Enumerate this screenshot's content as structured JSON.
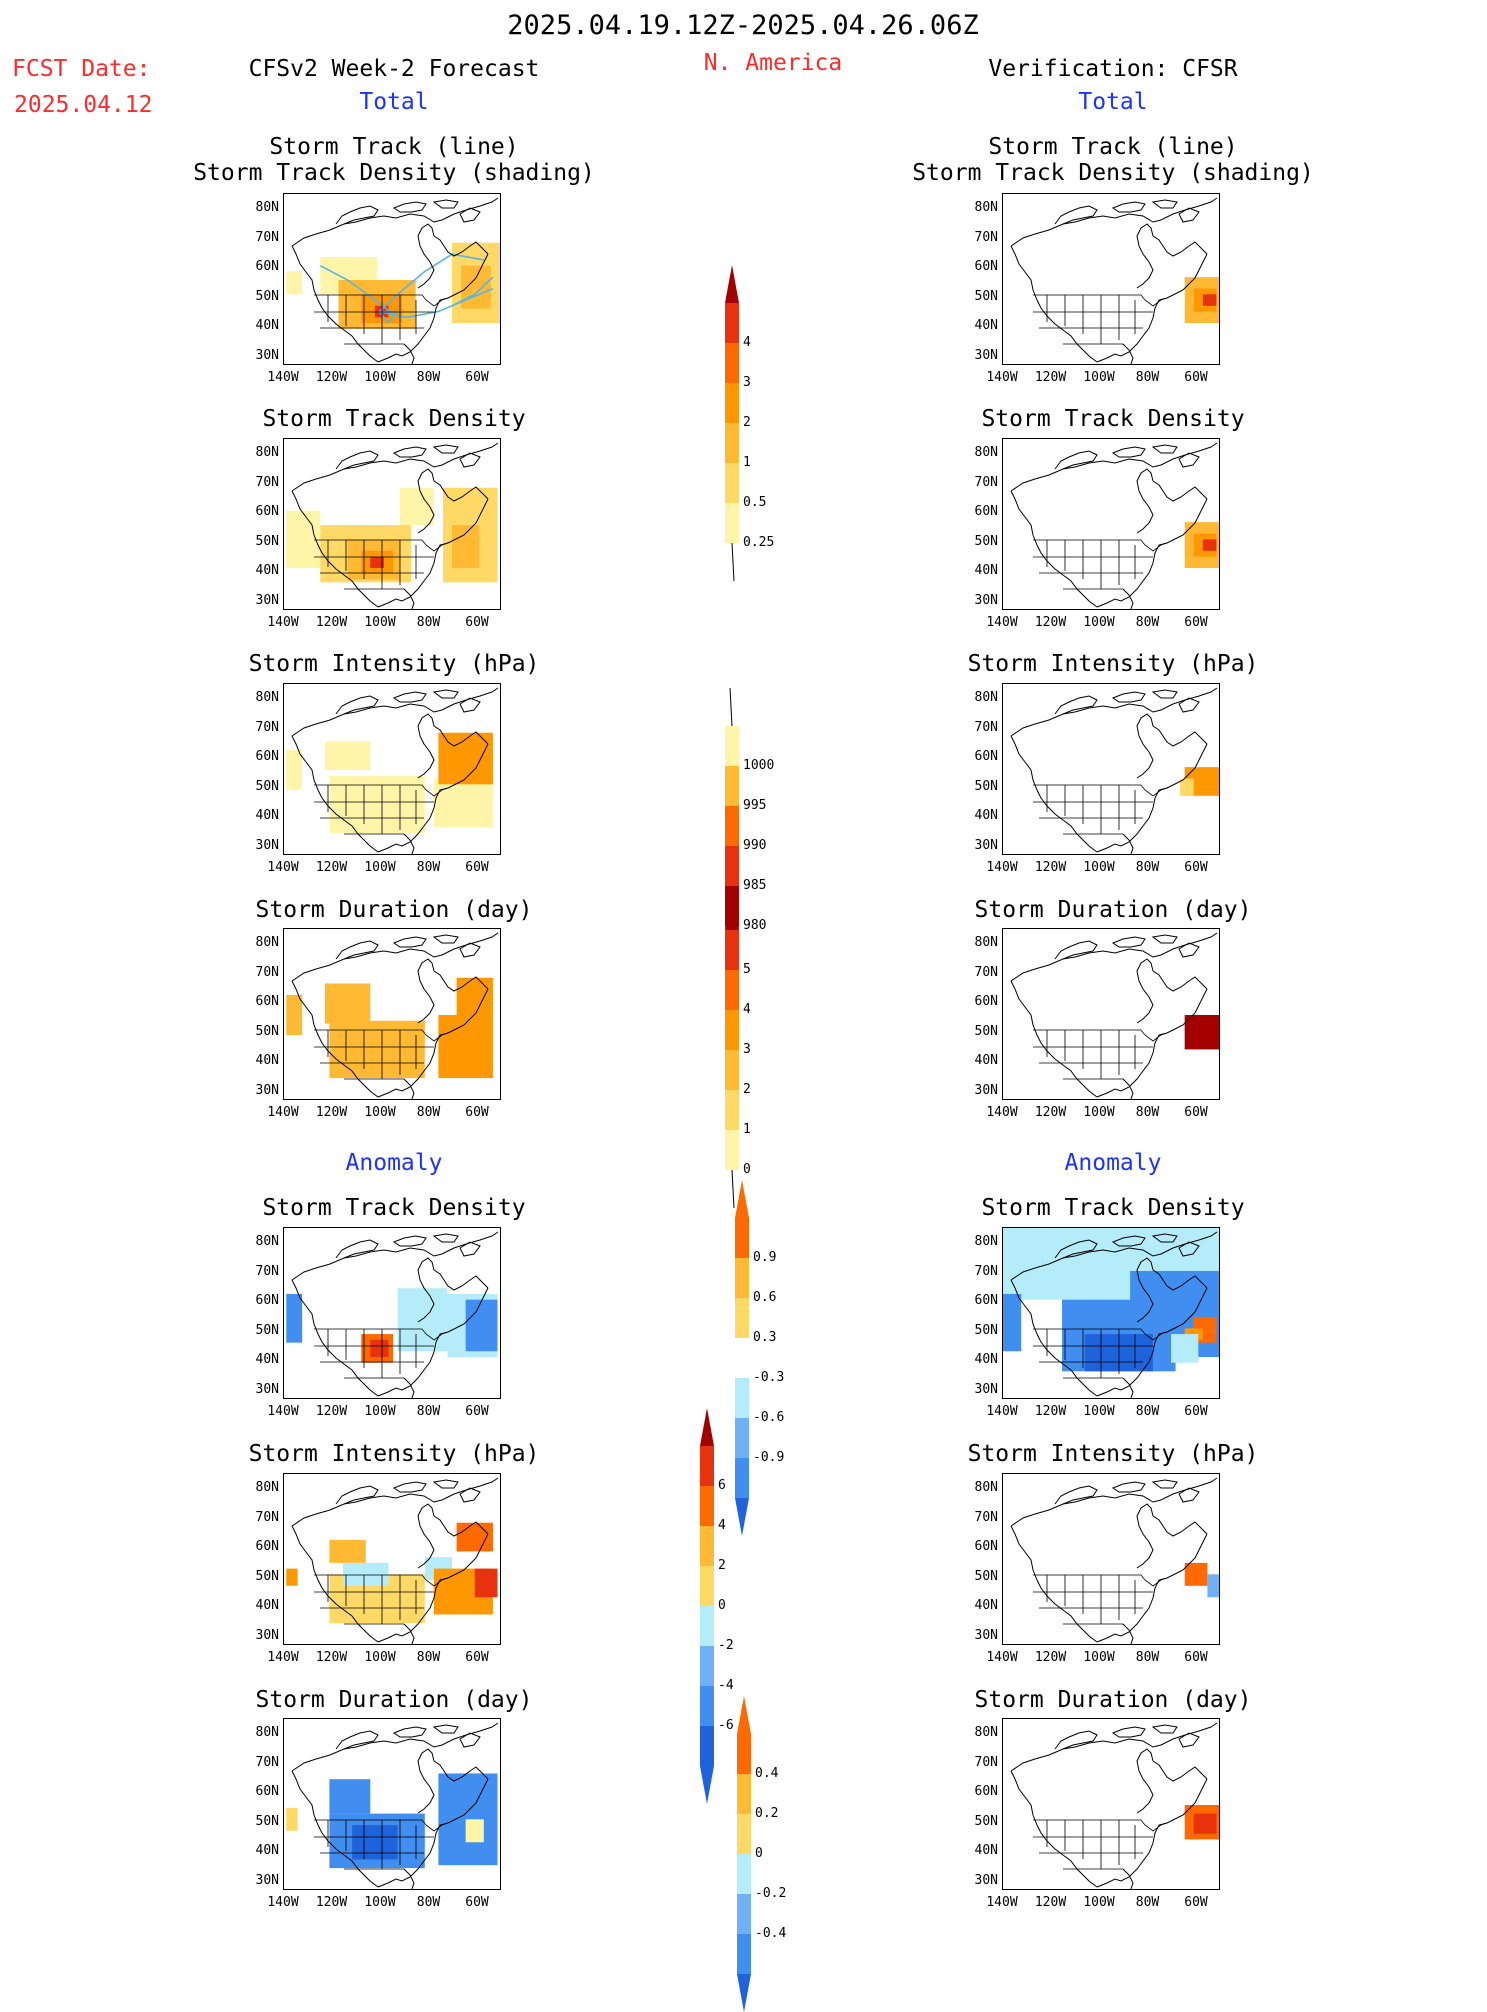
{
  "header": {
    "date_range": "2025.04.19.12Z-2025.04.26.06Z",
    "fcst_label": "FCST Date:",
    "fcst_date": "2025.04.12",
    "left_title": "CFSv2 Week-2 Forecast",
    "region": "N. America",
    "right_title": "Verification: CFSR",
    "total_label": "Total",
    "anomaly_label": "Anomaly"
  },
  "axes": {
    "y_ticks": [
      "80N",
      "70N",
      "60N",
      "50N",
      "40N",
      "30N"
    ],
    "x_ticks": [
      "140W",
      "120W",
      "100W",
      "80W",
      "60W"
    ]
  },
  "panel_titles": {
    "track_line1": "Storm Track (line)",
    "track_line2": "Storm Track Density (shading)",
    "density": "Storm Track Density",
    "intensity": "Storm Intensity (hPa)",
    "duration": "Storm Duration (day)"
  },
  "colors": {
    "yellow_light": "#fff5a8",
    "yellow": "#ffd966",
    "orange_light": "#ffb932",
    "orange": "#ff9700",
    "orange_red": "#ff6a00",
    "red": "#e8320e",
    "dark_red": "#a50000",
    "blue_light": "#b4ecfa",
    "blue_mid": "#6fb1f5",
    "blue": "#3f8ef0",
    "blue_dark": "#1f63dc",
    "track_line": "#56b4e9"
  },
  "colorbars": [
    {
      "name": "density-colorbar",
      "labels": [
        "4",
        "3",
        "2",
        "1",
        "0.5",
        "0.25"
      ]
    },
    {
      "name": "intensity-colorbar",
      "labels": [
        "1000",
        "995",
        "990",
        "985",
        "980"
      ]
    },
    {
      "name": "duration-colorbar",
      "labels": [
        "5",
        "4",
        "3",
        "2",
        "1",
        "0"
      ]
    },
    {
      "name": "density-anomaly-colorbar",
      "labels": [
        "0.9",
        "0.6",
        "0.3",
        "-0.3",
        "-0.6",
        "-0.9"
      ]
    },
    {
      "name": "intensity-anomaly-colorbar",
      "labels": [
        "6",
        "4",
        "2",
        "0",
        "-2",
        "-4",
        "-6"
      ]
    },
    {
      "name": "duration-anomaly-colorbar",
      "labels": [
        "0.4",
        "0.2",
        "0",
        "-0.2",
        "-0.4"
      ]
    }
  ]
}
